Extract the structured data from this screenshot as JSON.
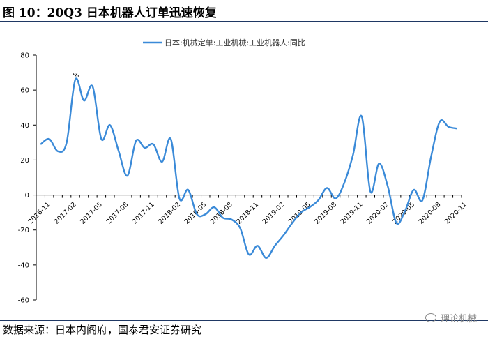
{
  "figure": {
    "title": "图 10：20Q3 日本机器人订单迅速恢复",
    "source": "数据来源：日本内阁府，国泰君安证券研究",
    "watermark": "理论机械"
  },
  "colors": {
    "series": "#3a8ad8",
    "axis": "#000000",
    "rule": "#1f3864"
  },
  "chart_data": {
    "type": "line",
    "title": "",
    "xlabel": "",
    "ylabel": "",
    "ylim": [
      -60,
      80
    ],
    "yticks": [
      80,
      60,
      40,
      20,
      0,
      -20,
      -40,
      -60
    ],
    "xticks": [
      "2016-11",
      "2017-02",
      "2017-05",
      "2017-08",
      "2017-11",
      "2018-02",
      "2018-05",
      "2018-08",
      "2018-11",
      "2019-02",
      "2019-05",
      "2019-08",
      "2019-11",
      "2020-02",
      "2020-05",
      "2020-08",
      "2020-11"
    ],
    "legend": {
      "position": "top-center"
    },
    "annotation": "%",
    "grid": false,
    "series": [
      {
        "name": "日本:机械定单:工业机械:工业机器人:同比",
        "x": [
          "2016-11",
          "2016-12",
          "2017-01",
          "2017-02",
          "2017-03",
          "2017-04",
          "2017-05",
          "2017-06",
          "2017-07",
          "2017-08",
          "2017-09",
          "2017-10",
          "2017-11",
          "2017-12",
          "2018-01",
          "2018-02",
          "2018-03",
          "2018-04",
          "2018-05",
          "2018-06",
          "2018-07",
          "2018-08",
          "2018-09",
          "2018-10",
          "2018-11",
          "2018-12",
          "2019-01",
          "2019-02",
          "2019-03",
          "2019-04",
          "2019-05",
          "2019-06",
          "2019-07",
          "2019-08",
          "2019-09",
          "2019-10",
          "2019-11",
          "2019-12",
          "2020-01",
          "2020-02",
          "2020-03",
          "2020-04",
          "2020-05",
          "2020-06",
          "2020-07",
          "2020-08",
          "2020-09",
          "2020-10",
          "2020-11"
        ],
        "values": [
          29,
          32,
          25,
          30,
          66,
          54,
          62,
          32,
          40,
          25,
          11,
          31,
          27,
          29,
          19,
          32,
          -2,
          3,
          -11,
          -11,
          -7,
          -13,
          -14,
          -19,
          -34,
          -29,
          -36,
          -29,
          -23,
          -16,
          -10,
          -7,
          -3,
          4,
          -2,
          7,
          23,
          45,
          2,
          18,
          5,
          -16,
          -9,
          3,
          -3,
          22,
          42,
          39,
          38
        ]
      }
    ]
  }
}
